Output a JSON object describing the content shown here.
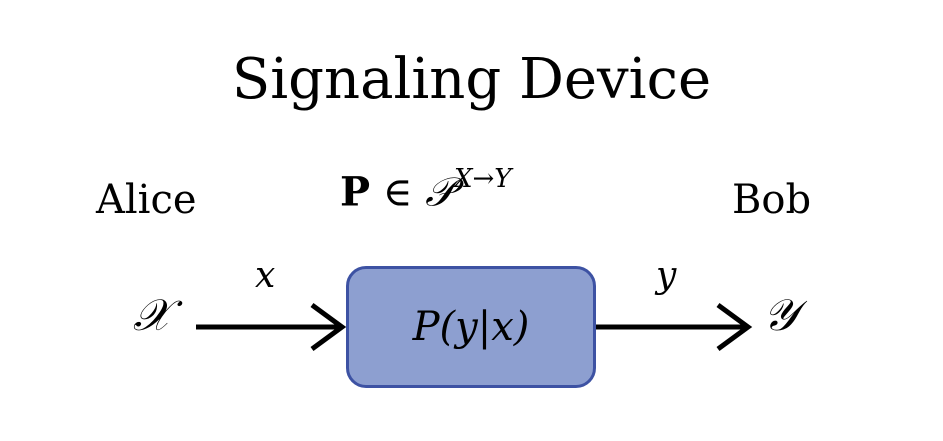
{
  "title": "Signaling Device",
  "parties": {
    "sender": "Alice",
    "receiver": "Bob"
  },
  "device_set": {
    "element": "P",
    "relation": "∈",
    "set": "𝒫",
    "superscript": "X→Y"
  },
  "input_set": "𝒳",
  "output_set": "𝒴",
  "input_symbol": "x",
  "output_symbol": "y",
  "channel": "P(y|x)",
  "colors": {
    "box_fill": "#8d9fd0",
    "box_border": "#3d52a3",
    "arrow": "#000000"
  }
}
